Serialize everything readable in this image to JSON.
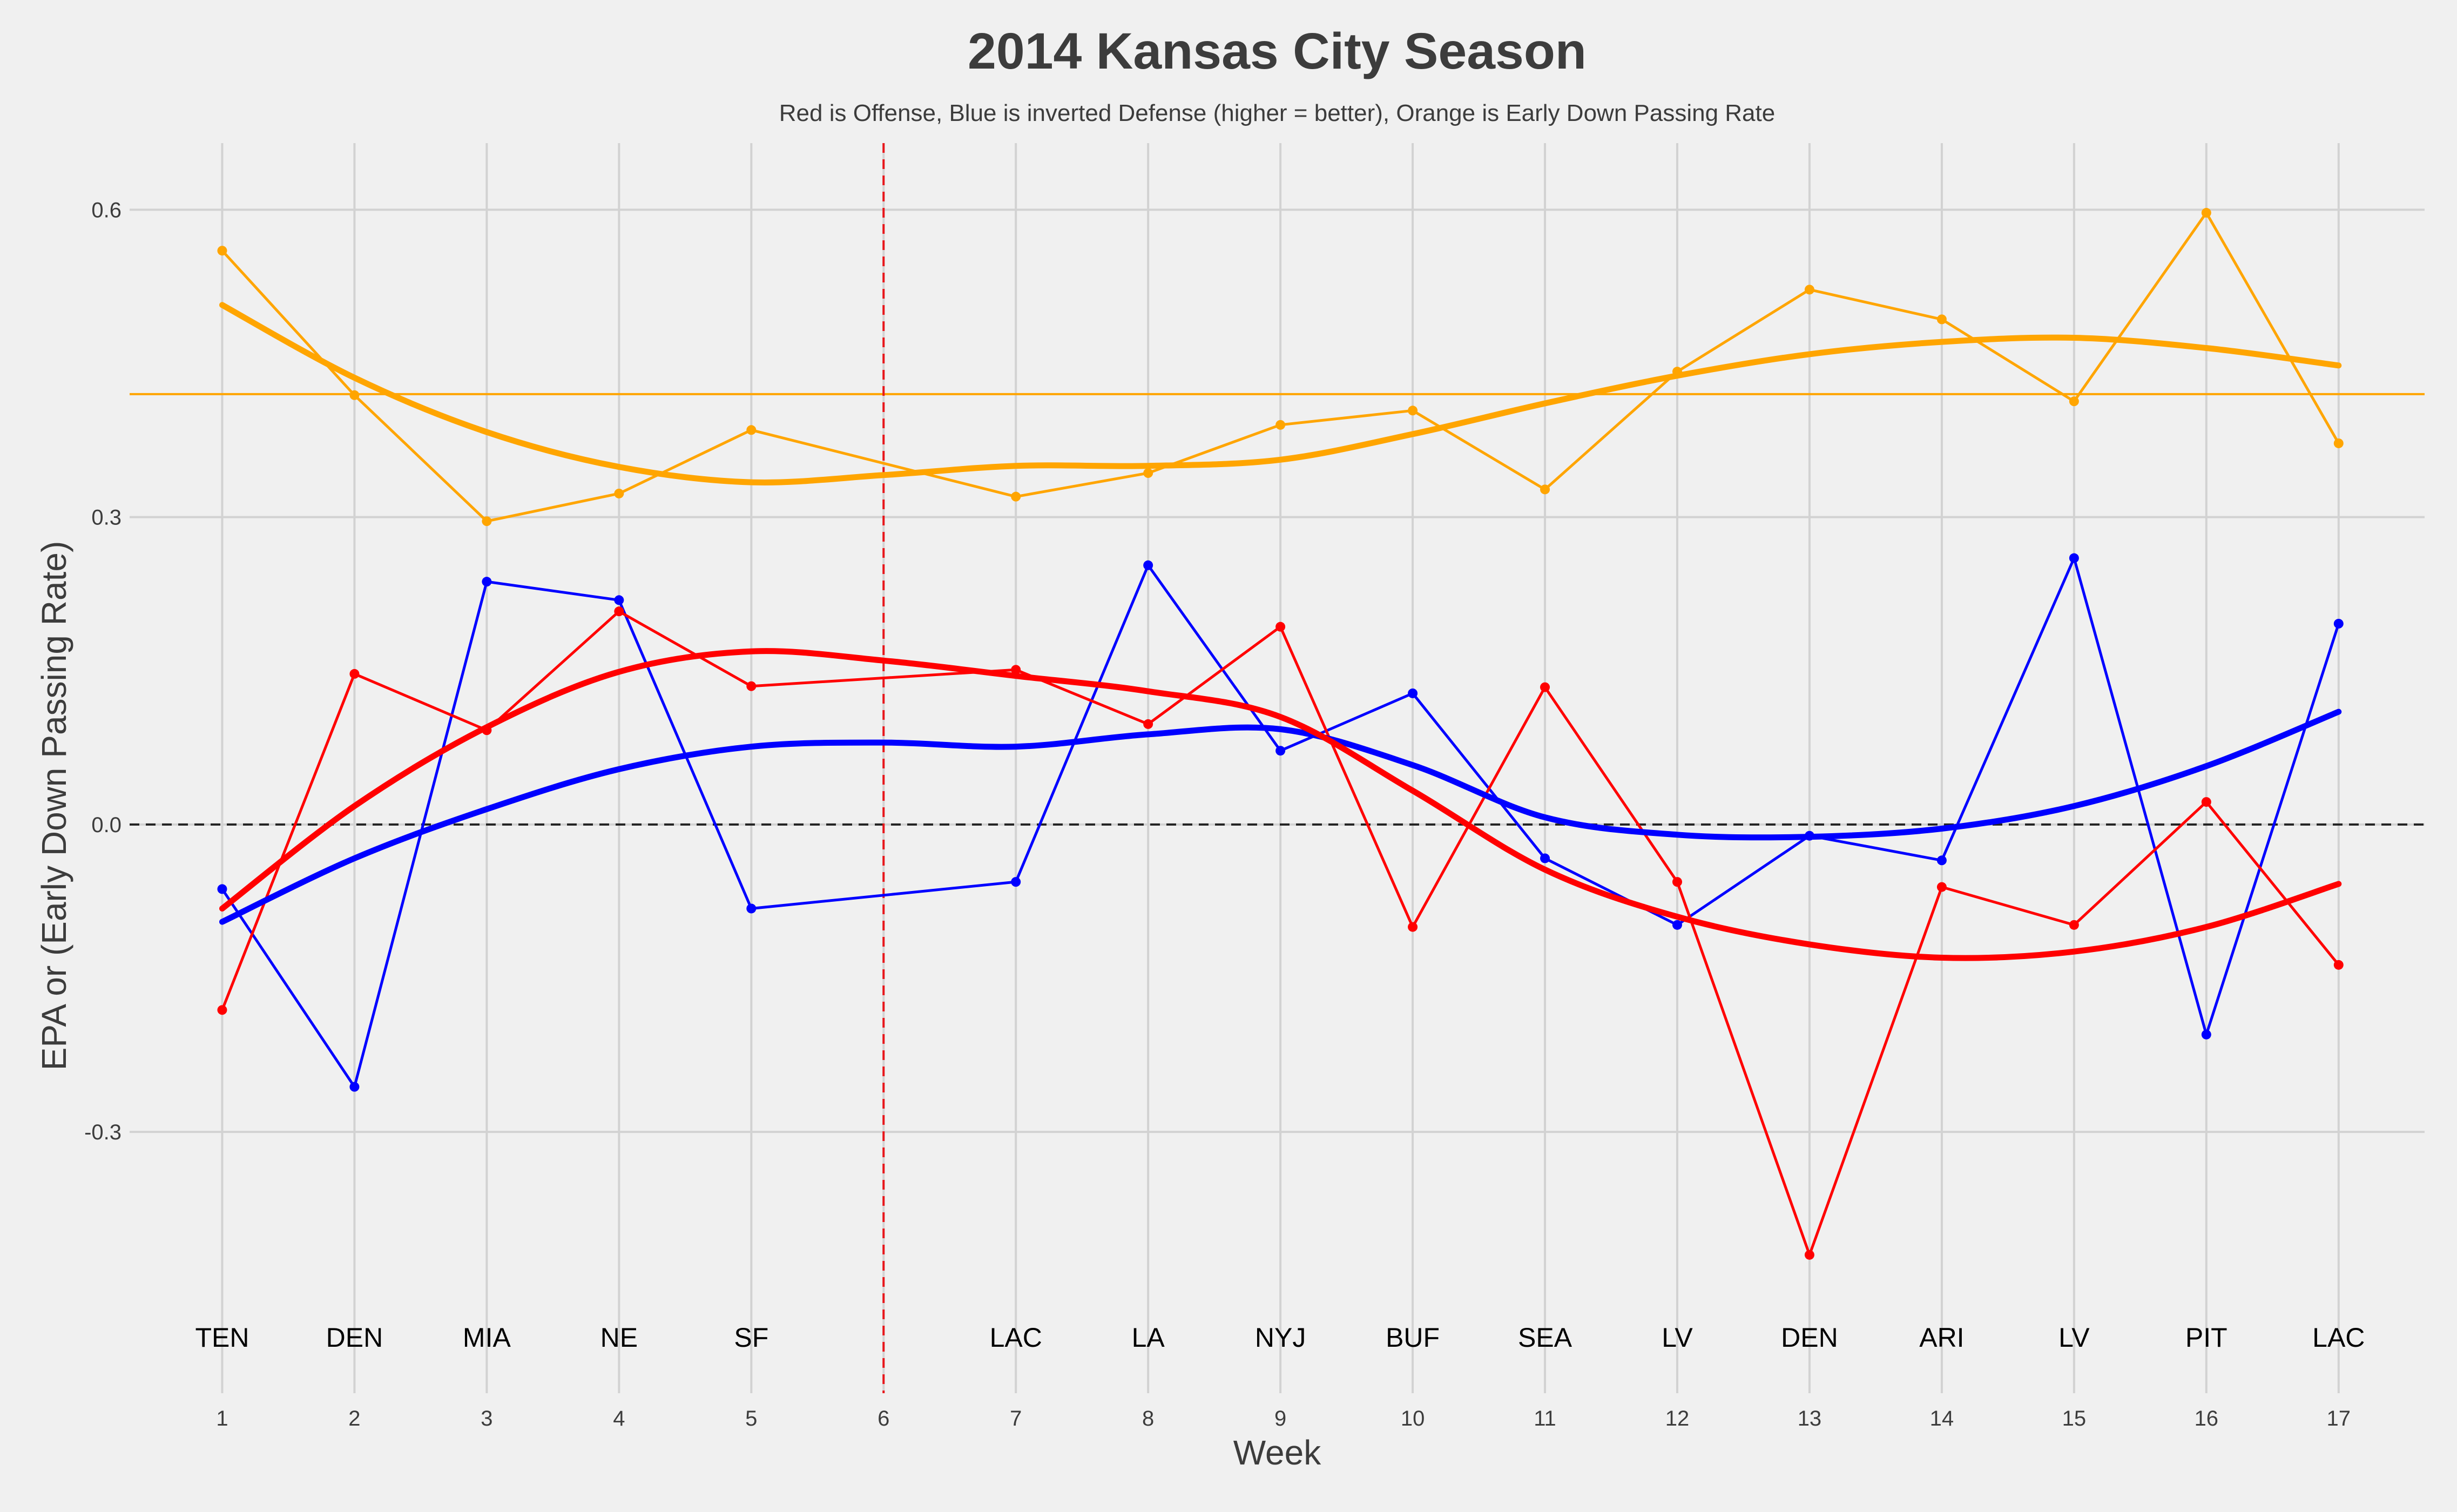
{
  "chart_data": {
    "type": "line",
    "title": "2014 Kansas City Season",
    "subtitle": "Red is Offense, Blue is inverted Defense (higher = better), Orange is Early Down Passing Rate",
    "xlabel": "Week",
    "ylabel": "EPA or (Early Down Passing Rate)",
    "xlim": [
      0.3,
      17.65
    ],
    "ylim": [
      -0.555,
      0.665
    ],
    "x_ticks": [
      "1",
      "2",
      "3",
      "4",
      "5",
      "6",
      "7",
      "8",
      "9",
      "10",
      "11",
      "12",
      "13",
      "14",
      "15",
      "16",
      "17"
    ],
    "y_ticks": [
      {
        "value": -0.3,
        "label": "-0.3"
      },
      {
        "value": 0.0,
        "label": "0.0"
      },
      {
        "value": 0.3,
        "label": "0.3"
      },
      {
        "value": 0.6,
        "label": "0.6"
      }
    ],
    "grid": true,
    "opponents": [
      {
        "week": 1,
        "team": "TEN"
      },
      {
        "week": 2,
        "team": "DEN"
      },
      {
        "week": 3,
        "team": "MIA"
      },
      {
        "week": 4,
        "team": "NE"
      },
      {
        "week": 5,
        "team": "SF"
      },
      {
        "week": 7,
        "team": "LAC"
      },
      {
        "week": 8,
        "team": "LA"
      },
      {
        "week": 9,
        "team": "NYJ"
      },
      {
        "week": 10,
        "team": "BUF"
      },
      {
        "week": 11,
        "team": "SEA"
      },
      {
        "week": 12,
        "team": "LV"
      },
      {
        "week": 13,
        "team": "DEN"
      },
      {
        "week": 14,
        "team": "ARI"
      },
      {
        "week": 15,
        "team": "LV"
      },
      {
        "week": 16,
        "team": "PIT"
      },
      {
        "week": 17,
        "team": "LAC"
      }
    ],
    "bye_week": 6,
    "reference_lines": {
      "zero": 0.0,
      "early_down_pass_average": 0.42
    },
    "series": [
      {
        "color": "#ffa500",
        "x": [
          1,
          2,
          3,
          4,
          5,
          7,
          8,
          9,
          10,
          11,
          12,
          13,
          14,
          15,
          16,
          17
        ],
        "values": [
          0.56,
          0.419,
          0.296,
          0.323,
          0.385,
          0.32,
          0.343,
          0.39,
          0.404,
          0.327,
          0.442,
          0.522,
          0.493,
          0.413,
          0.597,
          0.372
        ]
      },
      {
        "color": "#0000ff",
        "x": [
          1,
          2,
          3,
          4,
          5,
          7,
          8,
          9,
          10,
          11,
          12,
          13,
          14,
          15,
          16,
          17
        ],
        "values": [
          -0.063,
          -0.256,
          0.237,
          0.219,
          -0.082,
          -0.056,
          0.253,
          0.072,
          0.128,
          -0.033,
          -0.098,
          -0.011,
          -0.035,
          0.26,
          -0.205,
          0.196
        ]
      },
      {
        "color": "#ff0000",
        "x": [
          1,
          2,
          3,
          4,
          5,
          7,
          8,
          9,
          10,
          11,
          12,
          13,
          14,
          15,
          16,
          17
        ],
        "values": [
          -0.181,
          0.147,
          0.092,
          0.208,
          0.135,
          0.151,
          0.098,
          0.193,
          -0.1,
          0.134,
          -0.056,
          -0.42,
          -0.061,
          -0.098,
          0.022,
          -0.137
        ]
      }
    ],
    "smooth_series": [
      {
        "color": "#ffa500",
        "x": [
          1,
          2,
          3,
          4,
          5,
          6,
          7,
          8,
          9,
          10,
          11,
          12,
          13,
          14,
          15,
          16,
          17
        ],
        "values": [
          0.507,
          0.436,
          0.383,
          0.349,
          0.334,
          0.341,
          0.35,
          0.35,
          0.356,
          0.381,
          0.411,
          0.438,
          0.459,
          0.471,
          0.475,
          0.465,
          0.448
        ]
      },
      {
        "color": "#0000ff",
        "x": [
          1,
          2,
          3,
          4,
          5,
          6,
          7,
          8,
          9,
          10,
          11,
          12,
          13,
          14,
          15,
          16,
          17
        ],
        "values": [
          -0.095,
          -0.033,
          0.015,
          0.054,
          0.076,
          0.08,
          0.076,
          0.088,
          0.093,
          0.058,
          0.007,
          -0.01,
          -0.012,
          -0.004,
          0.018,
          0.057,
          0.11
        ]
      },
      {
        "color": "#ff0000",
        "x": [
          1,
          2,
          3,
          4,
          5,
          6,
          7,
          8,
          9,
          10,
          11,
          12,
          13,
          14,
          15,
          16,
          17
        ],
        "values": [
          -0.082,
          0.018,
          0.095,
          0.149,
          0.169,
          0.16,
          0.145,
          0.13,
          0.105,
          0.033,
          -0.044,
          -0.09,
          -0.117,
          -0.13,
          -0.124,
          -0.1,
          -0.058
        ]
      }
    ]
  }
}
